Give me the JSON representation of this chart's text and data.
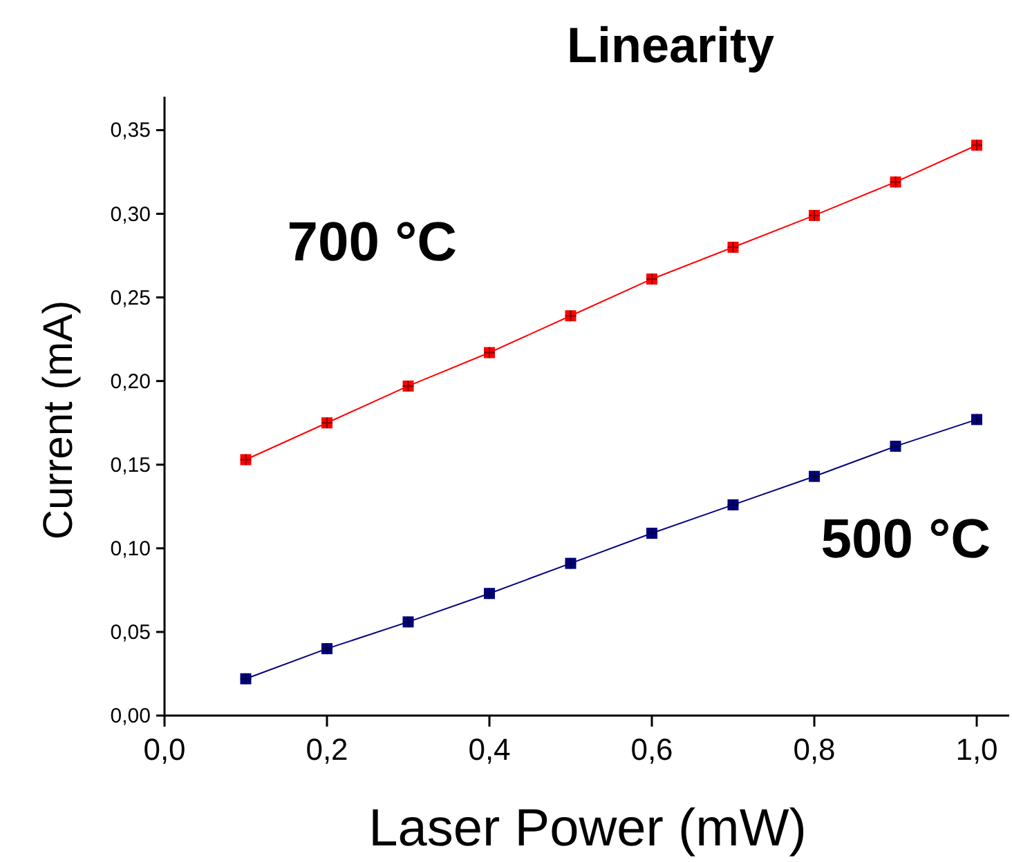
{
  "chart_data": {
    "type": "line",
    "title": "Linearity",
    "xlabel": "Laser Power (mW)",
    "ylabel": "Current (mA)",
    "x": [
      0.1,
      0.2,
      0.3,
      0.4,
      0.5,
      0.6,
      0.7,
      0.8,
      0.9,
      1.0
    ],
    "series": [
      {
        "name": "700 °C",
        "color": "#ff0000",
        "values": [
          0.153,
          0.175,
          0.197,
          0.217,
          0.239,
          0.261,
          0.28,
          0.299,
          0.319,
          0.341
        ]
      },
      {
        "name": "500 °C",
        "color": "#000080",
        "values": [
          0.022,
          0.04,
          0.056,
          0.073,
          0.091,
          0.109,
          0.126,
          0.143,
          0.161,
          0.177
        ]
      }
    ],
    "xlim": [
      0,
      1.04
    ],
    "ylim": [
      0,
      0.37
    ],
    "xticks": [
      {
        "value": 0,
        "label": "0,0"
      },
      {
        "value": 0.2,
        "label": "0,2"
      },
      {
        "value": 0.4,
        "label": "0,4"
      },
      {
        "value": 0.6,
        "label": "0,6"
      },
      {
        "value": 0.8,
        "label": "0,8"
      },
      {
        "value": 1,
        "label": "1,0"
      }
    ],
    "yticks": [
      {
        "value": 0,
        "label": "0,00"
      },
      {
        "value": 0.05,
        "label": "0,05"
      },
      {
        "value": 0.1,
        "label": "0,10"
      },
      {
        "value": 0.15,
        "label": "0,15"
      },
      {
        "value": 0.2,
        "label": "0,20"
      },
      {
        "value": 0.25,
        "label": "0,25"
      },
      {
        "value": 0.3,
        "label": "0,30"
      },
      {
        "value": 0.35,
        "label": "0,35"
      }
    ],
    "marker": "square",
    "line_style": "solid",
    "grid": false
  }
}
